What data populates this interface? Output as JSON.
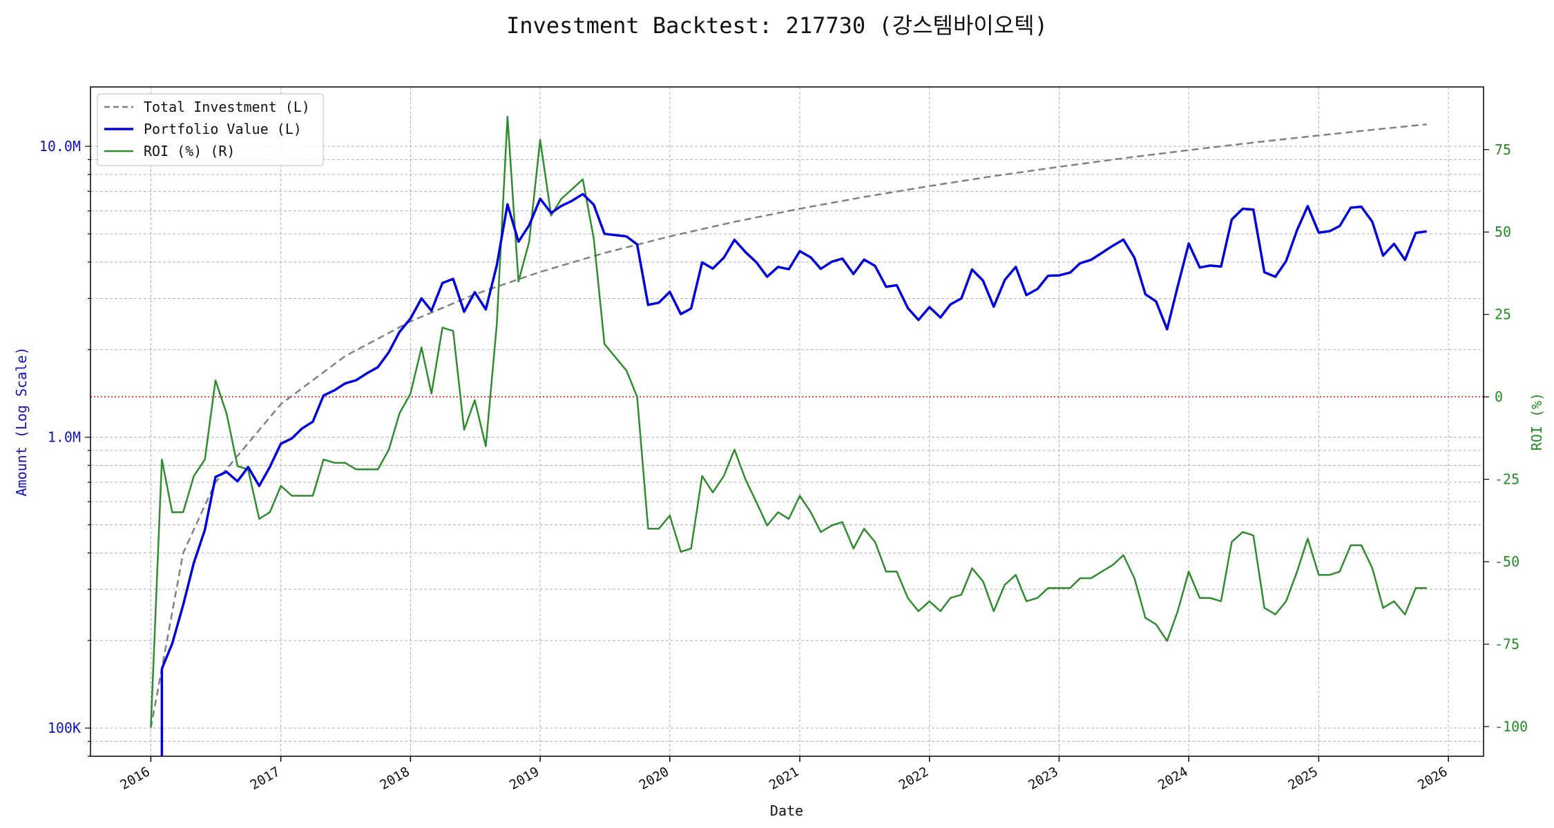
{
  "chart_data": {
    "type": "line",
    "title": "Investment Backtest: 217730 (강스템바이오텍)",
    "xlabel": "Date",
    "ylabel_left": "Amount (Log Scale)",
    "ylabel_right": "ROI (%)",
    "left_scale": "log",
    "left_ylim": [
      80000,
      16000000
    ],
    "right_ylim": [
      -109,
      94
    ],
    "x_range": [
      "2015-07-15",
      "2026-04-10"
    ],
    "grid": true,
    "legend_position": "top-left",
    "left_ticks": [
      {
        "value": 100000,
        "label": "100K"
      },
      {
        "value": 1000000,
        "label": "1.0M"
      },
      {
        "value": 10000000,
        "label": "10.0M"
      }
    ],
    "right_ticks": [
      -100,
      -75,
      -50,
      -25,
      0,
      25,
      50,
      75
    ],
    "x_ticks": [
      "2016",
      "2017",
      "2018",
      "2019",
      "2020",
      "2021",
      "2022",
      "2023",
      "2024",
      "2025",
      "2026"
    ],
    "colors": {
      "investment": "#808080",
      "portfolio": "#0000dd",
      "roi": "#2e8b2e",
      "zero_line": "#dd0000",
      "left_axis": "#1111bb",
      "right_axis": "#228b22"
    },
    "series": [
      {
        "name": "Total Investment (L)",
        "axis": "left",
        "style": "dashed",
        "x": [
          "2016-01-01",
          "2016-04-01",
          "2016-07-01",
          "2017-01-01",
          "2017-07-01",
          "2018-01-01",
          "2018-07-01",
          "2019-01-01",
          "2019-07-01",
          "2020-01-01",
          "2020-07-01",
          "2021-01-01",
          "2021-07-01",
          "2022-01-01",
          "2022-07-01",
          "2023-01-01",
          "2023-07-01",
          "2024-01-01",
          "2024-07-01",
          "2025-01-01",
          "2025-07-01",
          "2025-11-01"
        ],
        "values": [
          100000,
          400000,
          700000,
          1300000,
          1900000,
          2500000,
          3100000,
          3700000,
          4300000,
          4900000,
          5500000,
          6100000,
          6700000,
          7300000,
          7900000,
          8500000,
          9100000,
          9700000,
          10300000,
          10900000,
          11500000,
          11900000
        ]
      },
      {
        "name": "Portfolio Value (L)",
        "axis": "left",
        "style": "solid",
        "x": [
          "2016-02-01",
          "2016-03-01",
          "2016-04-01",
          "2016-05-01",
          "2016-06-01",
          "2016-07-01",
          "2016-08-01",
          "2016-09-01",
          "2016-10-01",
          "2016-11-01",
          "2016-12-01",
          "2017-01-01",
          "2017-02-01",
          "2017-03-01",
          "2017-04-01",
          "2017-05-01",
          "2017-06-01",
          "2017-07-01",
          "2017-08-01",
          "2017-09-01",
          "2017-10-01",
          "2017-11-01",
          "2017-12-01",
          "2018-01-01",
          "2018-02-01",
          "2018-03-01",
          "2018-04-01",
          "2018-05-01",
          "2018-06-01",
          "2018-07-01",
          "2018-08-01",
          "2018-09-01",
          "2018-10-01",
          "2018-11-01",
          "2018-12-01",
          "2019-01-01",
          "2019-02-01",
          "2019-03-01",
          "2019-04-01",
          "2019-05-01",
          "2019-06-01",
          "2019-07-01",
          "2019-08-01",
          "2019-09-01",
          "2019-10-01",
          "2019-11-01",
          "2019-12-01",
          "2020-01-01",
          "2020-02-01",
          "2020-03-01",
          "2020-04-01",
          "2020-05-01",
          "2020-06-01",
          "2020-07-01",
          "2020-08-01",
          "2020-09-01",
          "2020-10-01",
          "2020-11-01",
          "2020-12-01",
          "2021-01-01",
          "2021-02-01",
          "2021-03-01",
          "2021-04-01",
          "2021-05-01",
          "2021-06-01",
          "2021-07-01",
          "2021-08-01",
          "2021-09-01",
          "2021-10-01",
          "2021-11-01",
          "2021-12-01",
          "2022-01-01",
          "2022-02-01",
          "2022-03-01",
          "2022-04-01",
          "2022-05-01",
          "2022-06-01",
          "2022-07-01",
          "2022-08-01",
          "2022-09-01",
          "2022-10-01",
          "2022-11-01",
          "2022-12-01",
          "2023-01-01",
          "2023-02-01",
          "2023-03-01",
          "2023-04-01",
          "2023-05-01",
          "2023-06-01",
          "2023-07-01",
          "2023-08-01",
          "2023-09-01",
          "2023-10-01",
          "2023-11-01",
          "2023-12-01",
          "2024-01-01",
          "2024-02-01",
          "2024-03-01",
          "2024-04-01",
          "2024-05-01",
          "2024-06-01",
          "2024-07-01",
          "2024-08-01",
          "2024-09-01",
          "2024-10-01",
          "2024-11-01",
          "2024-12-01",
          "2025-01-01",
          "2025-02-01",
          "2025-03-01",
          "2025-04-01",
          "2025-05-01",
          "2025-06-01",
          "2025-07-01",
          "2025-08-01",
          "2025-09-01",
          "2025-10-01",
          "2025-11-01"
        ],
        "values": [
          160000,
          195000,
          265000,
          370000,
          480000,
          730000,
          760000,
          705000,
          790000,
          680000,
          790000,
          950000,
          990000,
          1070000,
          1130000,
          1390000,
          1450000,
          1530000,
          1570000,
          1660000,
          1740000,
          1960000,
          2300000,
          2560000,
          3000000,
          2720000,
          3390000,
          3500000,
          2700000,
          3150000,
          2750000,
          3900000,
          6320000,
          4700000,
          5350000,
          6600000,
          5900000,
          6230000,
          6500000,
          6850000,
          6300000,
          5000000,
          4950000,
          4900000,
          4600000,
          2850000,
          2900000,
          3160000,
          2650000,
          2770000,
          3990000,
          3800000,
          4140000,
          4770000,
          4330000,
          3990000,
          3560000,
          3850000,
          3780000,
          4360000,
          4150000,
          3790000,
          4010000,
          4110000,
          3640000,
          4080000,
          3880000,
          3290000,
          3330000,
          2780000,
          2530000,
          2800000,
          2580000,
          2860000,
          3000000,
          3770000,
          3450000,
          2810000,
          3470000,
          3850000,
          3080000,
          3230000,
          3590000,
          3600000,
          3680000,
          3960000,
          4070000,
          4300000,
          4550000,
          4780000,
          4140000,
          3100000,
          2930000,
          2350000,
          3300000,
          4630000,
          3830000,
          3890000,
          3860000,
          5600000,
          6100000,
          6060000,
          3690000,
          3560000,
          4030000,
          5150000,
          6230000,
          5050000,
          5110000,
          5320000,
          6150000,
          6200000,
          5500000,
          4210000,
          4620000,
          4070000,
          5040000,
          5100000
        ]
      },
      {
        "name": "ROI (%) (R)",
        "axis": "right",
        "style": "solid",
        "x": [
          "2016-01-01",
          "2016-02-01",
          "2016-03-01",
          "2016-04-01",
          "2016-05-01",
          "2016-06-01",
          "2016-07-01",
          "2016-08-01",
          "2016-09-01",
          "2016-10-01",
          "2016-11-01",
          "2016-12-01",
          "2017-01-01",
          "2017-02-01",
          "2017-03-01",
          "2017-04-01",
          "2017-05-01",
          "2017-06-01",
          "2017-07-01",
          "2017-08-01",
          "2017-09-01",
          "2017-10-01",
          "2017-11-01",
          "2017-12-01",
          "2018-01-01",
          "2018-02-01",
          "2018-03-01",
          "2018-04-01",
          "2018-05-01",
          "2018-06-01",
          "2018-07-01",
          "2018-08-01",
          "2018-09-01",
          "2018-10-01",
          "2018-11-01",
          "2018-12-01",
          "2019-01-01",
          "2019-02-01",
          "2019-03-01",
          "2019-04-01",
          "2019-05-01",
          "2019-06-01",
          "2019-07-01",
          "2019-08-01",
          "2019-09-01",
          "2019-10-01",
          "2019-11-01",
          "2019-12-01",
          "2020-01-01",
          "2020-02-01",
          "2020-03-01",
          "2020-04-01",
          "2020-05-01",
          "2020-06-01",
          "2020-07-01",
          "2020-08-01",
          "2020-09-01",
          "2020-10-01",
          "2020-11-01",
          "2020-12-01",
          "2021-01-01",
          "2021-02-01",
          "2021-03-01",
          "2021-04-01",
          "2021-05-01",
          "2021-06-01",
          "2021-07-01",
          "2021-08-01",
          "2021-09-01",
          "2021-10-01",
          "2021-11-01",
          "2021-12-01",
          "2022-01-01",
          "2022-02-01",
          "2022-03-01",
          "2022-04-01",
          "2022-05-01",
          "2022-06-01",
          "2022-07-01",
          "2022-08-01",
          "2022-09-01",
          "2022-10-01",
          "2022-11-01",
          "2022-12-01",
          "2023-01-01",
          "2023-02-01",
          "2023-03-01",
          "2023-04-01",
          "2023-05-01",
          "2023-06-01",
          "2023-07-01",
          "2023-08-01",
          "2023-09-01",
          "2023-10-01",
          "2023-11-01",
          "2023-12-01",
          "2024-01-01",
          "2024-02-01",
          "2024-03-01",
          "2024-04-01",
          "2024-05-01",
          "2024-06-01",
          "2024-07-01",
          "2024-08-01",
          "2024-09-01",
          "2024-10-01",
          "2024-11-01",
          "2024-12-01",
          "2025-01-01",
          "2025-02-01",
          "2025-03-01",
          "2025-04-01",
          "2025-05-01",
          "2025-06-01",
          "2025-07-01",
          "2025-08-01",
          "2025-09-01",
          "2025-10-01",
          "2025-11-01"
        ],
        "values": [
          -100,
          -19,
          -35,
          -35,
          -24,
          -19,
          5,
          -5,
          -21,
          -22,
          -37,
          -35,
          -27,
          -30,
          -30,
          -30,
          -19,
          -20,
          -20,
          -22,
          -22,
          -22,
          -16,
          -5,
          1,
          15,
          1,
          21,
          20,
          -10,
          -1,
          -15,
          22,
          85,
          35,
          47,
          78,
          55,
          60,
          63,
          66,
          48,
          16,
          12,
          8,
          0,
          -40,
          -40,
          -36,
          -47,
          -46,
          -24,
          -29,
          -24,
          -16,
          -25,
          -32,
          -39,
          -35,
          -37,
          -30,
          -35,
          -41,
          -39,
          -38,
          -46,
          -40,
          -44,
          -53,
          -53,
          -61,
          -65,
          -62,
          -65,
          -61,
          -60,
          -52,
          -56,
          -65,
          -57,
          -54,
          -62,
          -61,
          -58,
          -58,
          -58,
          -55,
          -55,
          -53,
          -51,
          -48,
          -55,
          -67,
          -69,
          -74,
          -65,
          -53,
          -61,
          -61,
          -62,
          -44,
          -41,
          -42,
          -64,
          -66,
          -62,
          -53,
          -43,
          -54,
          -54,
          -53,
          -45,
          -45,
          -52,
          -64,
          -62,
          -66,
          -58,
          -58
        ]
      }
    ],
    "reference_line": {
      "axis": "right",
      "value": 0,
      "style": "dotted"
    }
  }
}
